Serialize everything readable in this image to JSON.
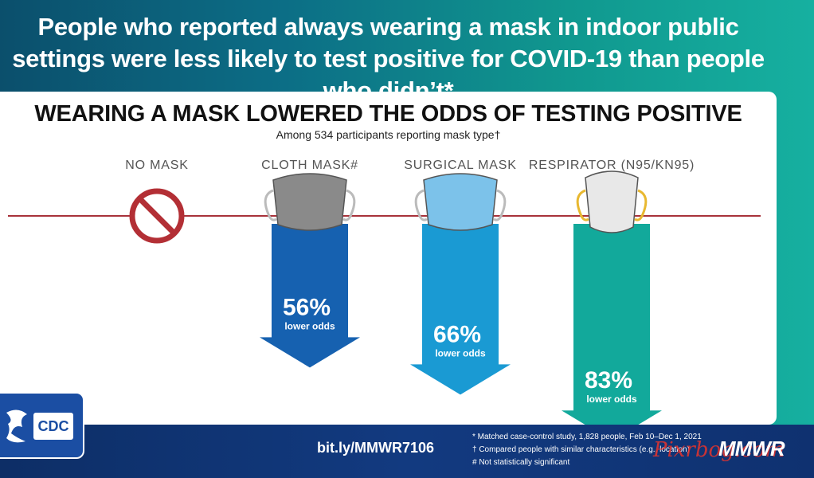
{
  "headline": "People who reported always wearing a mask in indoor public settings were less likely to test positive for COVID-19 than people who didn’t*",
  "chart_data": {
    "type": "bar",
    "title": "WEARING A MASK LOWERED THE ODDS OF TESTING POSITIVE",
    "subtitle": "Among 534 participants reporting mask type†",
    "categories": [
      "NO MASK",
      "CLOTH MASK#",
      "SURGICAL MASK",
      "RESPIRATOR (N95/KN95)"
    ],
    "values": [
      0,
      56,
      66,
      83
    ],
    "value_labels": [
      "",
      "56%",
      "66%",
      "83%"
    ],
    "value_caption": "lower odds",
    "ylim": [
      0,
      100
    ],
    "colors": [
      "#b32f35",
      "#1661b0",
      "#1a9ad3",
      "#12a99b"
    ]
  },
  "footer": {
    "link": "bit.ly/MMWR7106",
    "notes": [
      "* Matched case-control study, 1,828 people, Feb 10–Dec 1, 2021",
      "† Compared people with similar characteristics (e.g., location)",
      "# Not statistically significant"
    ],
    "brand": "MMWR",
    "logo_text": "CDC",
    "watermark": "Pixrbog.com"
  }
}
